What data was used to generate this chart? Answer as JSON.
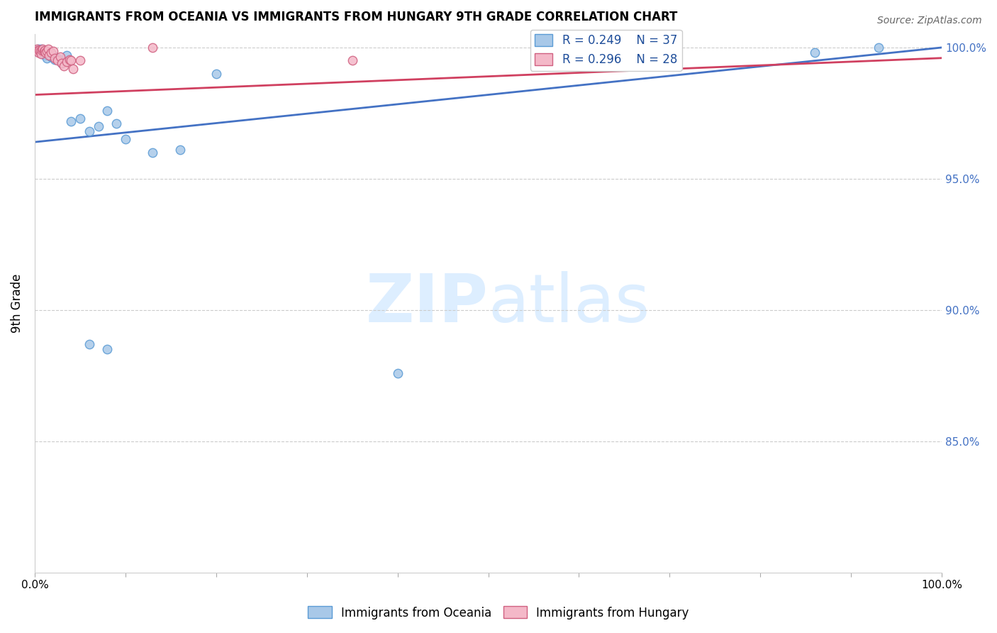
{
  "title": "IMMIGRANTS FROM OCEANIA VS IMMIGRANTS FROM HUNGARY 9TH GRADE CORRELATION CHART",
  "source": "Source: ZipAtlas.com",
  "ylabel": "9th Grade",
  "xlim": [
    0.0,
    1.0
  ],
  "ylim": [
    0.8,
    1.005
  ],
  "xticks": [
    0.0,
    0.1,
    0.2,
    0.3,
    0.4,
    0.5,
    0.6,
    0.7,
    0.8,
    0.9,
    1.0
  ],
  "xticklabels": [
    "0.0%",
    "",
    "",
    "",
    "",
    "",
    "",
    "",
    "",
    "",
    "100.0%"
  ],
  "ytick_positions": [
    0.85,
    0.9,
    0.95,
    1.0
  ],
  "yticklabels": [
    "85.0%",
    "90.0%",
    "95.0%",
    "100.0%"
  ],
  "legend_blue_r": "R = 0.249",
  "legend_blue_n": "N = 37",
  "legend_pink_r": "R = 0.296",
  "legend_pink_n": "N = 28",
  "blue_scatter_x": [
    0.002,
    0.003,
    0.004,
    0.005,
    0.006,
    0.007,
    0.008,
    0.009,
    0.01,
    0.011,
    0.012,
    0.013,
    0.015,
    0.016,
    0.018,
    0.02,
    0.022,
    0.025,
    0.03,
    0.035,
    0.04,
    0.05,
    0.06,
    0.07,
    0.08,
    0.09,
    0.1,
    0.13,
    0.16,
    0.2,
    0.06,
    0.08,
    0.4,
    0.65,
    0.7,
    0.86,
    0.93
  ],
  "blue_scatter_y": [
    0.999,
    0.9985,
    0.9995,
    0.999,
    0.998,
    0.9995,
    0.9985,
    0.9975,
    0.999,
    0.998,
    0.997,
    0.996,
    0.9975,
    0.998,
    0.9965,
    0.997,
    0.9955,
    0.996,
    0.994,
    0.997,
    0.972,
    0.973,
    0.968,
    0.97,
    0.976,
    0.971,
    0.965,
    0.96,
    0.961,
    0.99,
    0.887,
    0.885,
    0.876,
    0.995,
    0.996,
    0.998,
    1.0
  ],
  "pink_scatter_x": [
    0.002,
    0.003,
    0.004,
    0.005,
    0.006,
    0.007,
    0.008,
    0.009,
    0.01,
    0.011,
    0.012,
    0.013,
    0.015,
    0.016,
    0.018,
    0.02,
    0.022,
    0.025,
    0.028,
    0.03,
    0.032,
    0.035,
    0.038,
    0.04,
    0.042,
    0.05,
    0.13,
    0.35
  ],
  "pink_scatter_y": [
    0.9995,
    0.999,
    0.998,
    0.999,
    0.9985,
    0.9975,
    0.999,
    0.9995,
    0.9985,
    0.999,
    0.998,
    0.9985,
    0.9995,
    0.997,
    0.998,
    0.9985,
    0.996,
    0.995,
    0.9965,
    0.994,
    0.993,
    0.9945,
    0.9955,
    0.995,
    0.992,
    0.995,
    1.0,
    0.995
  ],
  "trend_blue_start_y": 0.964,
  "trend_blue_end_y": 1.0,
  "trend_pink_start_y": 0.982,
  "trend_pink_end_y": 0.996,
  "blue_color": "#a8c8e8",
  "blue_edge_color": "#5b9bd5",
  "pink_color": "#f4b8c8",
  "pink_edge_color": "#d06080",
  "trend_blue_color": "#4472c4",
  "trend_pink_color": "#d04060",
  "marker_size": 80,
  "watermark_zip": "ZIP",
  "watermark_atlas": "atlas",
  "watermark_color": "#ddeeff",
  "grid_color": "#cccccc",
  "legend_text_color": "#1f4e9a",
  "title_fontsize": 12,
  "axis_label_fontsize": 11,
  "legend_fontsize": 12
}
